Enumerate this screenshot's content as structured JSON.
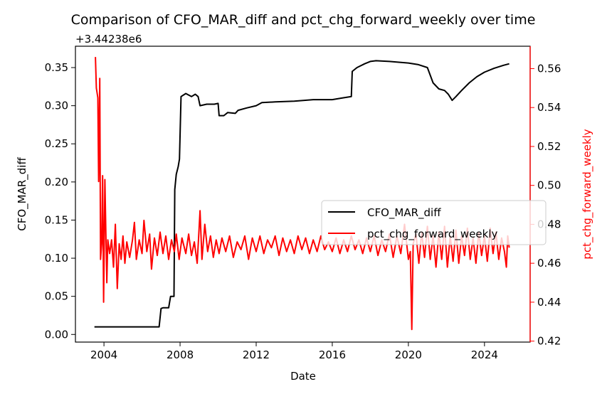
{
  "chart_data": {
    "type": "line",
    "title": "Comparison of CFO_MAR_diff and pct_chg_forward_weekly over time",
    "xlabel": "Date",
    "ylabel_left": "CFO_MAR_diff",
    "ylabel_right": "pct_chg_forward_weekly",
    "left_offset_label": "+3.44238e6",
    "x_ticks": [
      "2004",
      "2008",
      "2012",
      "2016",
      "2020",
      "2024"
    ],
    "xlim": [
      2002.5,
      2026.4
    ],
    "ylim_left": [
      -0.01,
      0.378
    ],
    "ylim_right": [
      0.4195,
      0.5715
    ],
    "y_ticks_left": [
      "0.00",
      "0.05",
      "0.10",
      "0.15",
      "0.20",
      "0.25",
      "0.30",
      "0.35"
    ],
    "y_ticks_right": [
      "0.42",
      "0.44",
      "0.46",
      "0.48",
      "0.50",
      "0.52",
      "0.54",
      "0.56"
    ],
    "grid": false,
    "legend_placement": "center-right",
    "colors": {
      "left_series": "#000000",
      "right_series": "#ff0000",
      "right_axis": "#ff0000"
    },
    "series": [
      {
        "name": "CFO_MAR_diff",
        "axis": "left",
        "color": "#000000",
        "points": [
          [
            2003.5,
            0.01
          ],
          [
            2006.9,
            0.01
          ],
          [
            2007.0,
            0.034
          ],
          [
            2007.1,
            0.035
          ],
          [
            2007.4,
            0.035
          ],
          [
            2007.5,
            0.05
          ],
          [
            2007.6,
            0.05
          ],
          [
            2007.68,
            0.05
          ],
          [
            2007.72,
            0.19
          ],
          [
            2007.8,
            0.21
          ],
          [
            2007.9,
            0.22
          ],
          [
            2007.97,
            0.23
          ],
          [
            2008.05,
            0.312
          ],
          [
            2008.3,
            0.316
          ],
          [
            2008.6,
            0.312
          ],
          [
            2008.8,
            0.315
          ],
          [
            2008.95,
            0.312
          ],
          [
            2009.05,
            0.3
          ],
          [
            2009.4,
            0.302
          ],
          [
            2009.8,
            0.302
          ],
          [
            2010.0,
            0.303
          ],
          [
            2010.05,
            0.287
          ],
          [
            2010.3,
            0.287
          ],
          [
            2010.5,
            0.291
          ],
          [
            2010.9,
            0.29
          ],
          [
            2011.05,
            0.294
          ],
          [
            2011.5,
            0.297
          ],
          [
            2012.0,
            0.3
          ],
          [
            2012.3,
            0.304
          ],
          [
            2013.0,
            0.305
          ],
          [
            2014.0,
            0.306
          ],
          [
            2015.0,
            0.308
          ],
          [
            2016.0,
            0.308
          ],
          [
            2016.5,
            0.31
          ],
          [
            2017.0,
            0.312
          ],
          [
            2017.05,
            0.345
          ],
          [
            2017.3,
            0.35
          ],
          [
            2017.7,
            0.355
          ],
          [
            2018.0,
            0.358
          ],
          [
            2018.3,
            0.359
          ],
          [
            2019.0,
            0.358
          ],
          [
            2019.5,
            0.357
          ],
          [
            2020.0,
            0.356
          ],
          [
            2020.5,
            0.354
          ],
          [
            2021.0,
            0.35
          ],
          [
            2021.3,
            0.33
          ],
          [
            2021.6,
            0.322
          ],
          [
            2021.9,
            0.32
          ],
          [
            2022.1,
            0.315
          ],
          [
            2022.3,
            0.307
          ],
          [
            2022.5,
            0.312
          ],
          [
            2022.8,
            0.32
          ],
          [
            2023.2,
            0.33
          ],
          [
            2023.6,
            0.338
          ],
          [
            2024.0,
            0.344
          ],
          [
            2024.5,
            0.349
          ],
          [
            2025.0,
            0.353
          ],
          [
            2025.3,
            0.355
          ]
        ]
      },
      {
        "name": "pct_chg_forward_weekly",
        "axis": "right",
        "color": "#ff0000",
        "points": [
          [
            2003.55,
            0.566
          ],
          [
            2003.6,
            0.55
          ],
          [
            2003.68,
            0.545
          ],
          [
            2003.72,
            0.502
          ],
          [
            2003.78,
            0.555
          ],
          [
            2003.82,
            0.462
          ],
          [
            2003.88,
            0.47
          ],
          [
            2003.93,
            0.505
          ],
          [
            2003.98,
            0.44
          ],
          [
            2004.05,
            0.503
          ],
          [
            2004.1,
            0.475
          ],
          [
            2004.15,
            0.45
          ],
          [
            2004.2,
            0.472
          ],
          [
            2004.3,
            0.465
          ],
          [
            2004.4,
            0.472
          ],
          [
            2004.5,
            0.458
          ],
          [
            2004.6,
            0.48
          ],
          [
            2004.7,
            0.447
          ],
          [
            2004.8,
            0.47
          ],
          [
            2004.9,
            0.462
          ],
          [
            2005.0,
            0.474
          ],
          [
            2005.1,
            0.46
          ],
          [
            2005.2,
            0.471
          ],
          [
            2005.35,
            0.463
          ],
          [
            2005.5,
            0.472
          ],
          [
            2005.6,
            0.481
          ],
          [
            2005.7,
            0.462
          ],
          [
            2005.85,
            0.472
          ],
          [
            2006.0,
            0.465
          ],
          [
            2006.1,
            0.482
          ],
          [
            2006.25,
            0.466
          ],
          [
            2006.4,
            0.475
          ],
          [
            2006.5,
            0.457
          ],
          [
            2006.65,
            0.473
          ],
          [
            2006.8,
            0.464
          ],
          [
            2006.95,
            0.476
          ],
          [
            2007.1,
            0.465
          ],
          [
            2007.25,
            0.474
          ],
          [
            2007.4,
            0.462
          ],
          [
            2007.55,
            0.472
          ],
          [
            2007.7,
            0.466
          ],
          [
            2007.8,
            0.475
          ],
          [
            2007.95,
            0.462
          ],
          [
            2008.1,
            0.473
          ],
          [
            2008.3,
            0.465
          ],
          [
            2008.45,
            0.475
          ],
          [
            2008.6,
            0.464
          ],
          [
            2008.75,
            0.471
          ],
          [
            2008.9,
            0.46
          ],
          [
            2009.0,
            0.478
          ],
          [
            2009.05,
            0.487
          ],
          [
            2009.15,
            0.462
          ],
          [
            2009.3,
            0.48
          ],
          [
            2009.45,
            0.466
          ],
          [
            2009.6,
            0.474
          ],
          [
            2009.75,
            0.463
          ],
          [
            2009.9,
            0.472
          ],
          [
            2010.05,
            0.465
          ],
          [
            2010.2,
            0.473
          ],
          [
            2010.4,
            0.466
          ],
          [
            2010.6,
            0.474
          ],
          [
            2010.8,
            0.463
          ],
          [
            2011.0,
            0.471
          ],
          [
            2011.2,
            0.467
          ],
          [
            2011.4,
            0.474
          ],
          [
            2011.6,
            0.462
          ],
          [
            2011.8,
            0.473
          ],
          [
            2012.0,
            0.466
          ],
          [
            2012.2,
            0.474
          ],
          [
            2012.4,
            0.465
          ],
          [
            2012.6,
            0.472
          ],
          [
            2012.8,
            0.468
          ],
          [
            2013.0,
            0.474
          ],
          [
            2013.2,
            0.464
          ],
          [
            2013.4,
            0.473
          ],
          [
            2013.6,
            0.466
          ],
          [
            2013.8,
            0.472
          ],
          [
            2014.0,
            0.465
          ],
          [
            2014.2,
            0.474
          ],
          [
            2014.4,
            0.467
          ],
          [
            2014.6,
            0.473
          ],
          [
            2014.8,
            0.465
          ],
          [
            2015.0,
            0.472
          ],
          [
            2015.2,
            0.466
          ],
          [
            2015.4,
            0.474
          ],
          [
            2015.6,
            0.467
          ],
          [
            2015.8,
            0.471
          ],
          [
            2016.0,
            0.466
          ],
          [
            2016.2,
            0.473
          ],
          [
            2016.4,
            0.465
          ],
          [
            2016.6,
            0.472
          ],
          [
            2016.8,
            0.466
          ],
          [
            2017.0,
            0.474
          ],
          [
            2017.2,
            0.467
          ],
          [
            2017.4,
            0.472
          ],
          [
            2017.6,
            0.465
          ],
          [
            2017.8,
            0.473
          ],
          [
            2018.0,
            0.466
          ],
          [
            2018.2,
            0.474
          ],
          [
            2018.4,
            0.464
          ],
          [
            2018.6,
            0.472
          ],
          [
            2018.8,
            0.466
          ],
          [
            2019.0,
            0.475
          ],
          [
            2019.2,
            0.463
          ],
          [
            2019.4,
            0.474
          ],
          [
            2019.6,
            0.465
          ],
          [
            2019.8,
            0.48
          ],
          [
            2020.0,
            0.462
          ],
          [
            2020.1,
            0.466
          ],
          [
            2020.18,
            0.426
          ],
          [
            2020.25,
            0.47
          ],
          [
            2020.4,
            0.475
          ],
          [
            2020.55,
            0.46
          ],
          [
            2020.7,
            0.476
          ],
          [
            2020.85,
            0.463
          ],
          [
            2021.0,
            0.479
          ],
          [
            2021.15,
            0.462
          ],
          [
            2021.3,
            0.474
          ],
          [
            2021.45,
            0.458
          ],
          [
            2021.6,
            0.476
          ],
          [
            2021.75,
            0.462
          ],
          [
            2021.9,
            0.479
          ],
          [
            2022.05,
            0.458
          ],
          [
            2022.2,
            0.474
          ],
          [
            2022.35,
            0.461
          ],
          [
            2022.5,
            0.477
          ],
          [
            2022.65,
            0.46
          ],
          [
            2022.8,
            0.474
          ],
          [
            2022.95,
            0.464
          ],
          [
            2023.1,
            0.478
          ],
          [
            2023.25,
            0.462
          ],
          [
            2023.4,
            0.473
          ],
          [
            2023.55,
            0.46
          ],
          [
            2023.7,
            0.476
          ],
          [
            2023.85,
            0.464
          ],
          [
            2024.0,
            0.474
          ],
          [
            2024.15,
            0.461
          ],
          [
            2024.3,
            0.478
          ],
          [
            2024.45,
            0.465
          ],
          [
            2024.6,
            0.476
          ],
          [
            2024.75,
            0.462
          ],
          [
            2024.9,
            0.473
          ],
          [
            2025.05,
            0.466
          ],
          [
            2025.15,
            0.458
          ],
          [
            2025.22,
            0.474
          ],
          [
            2025.3,
            0.468
          ]
        ]
      }
    ]
  }
}
